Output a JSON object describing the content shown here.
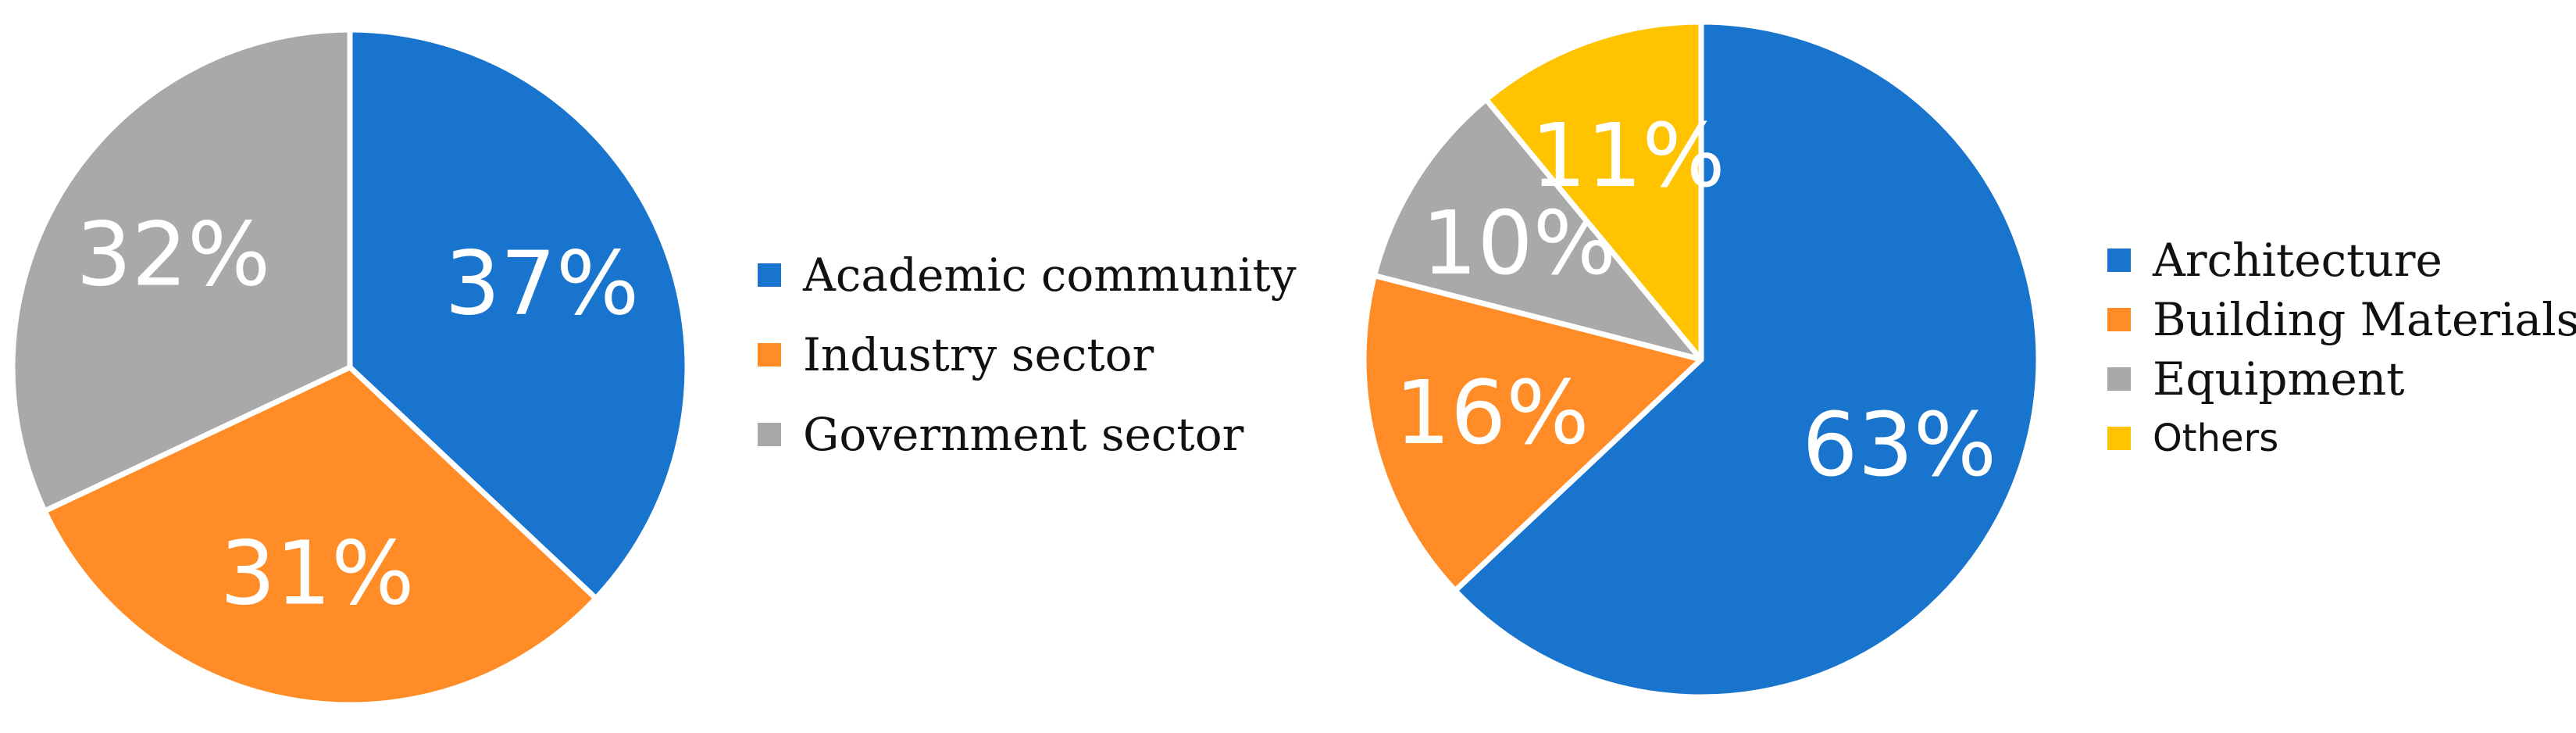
{
  "chart_data": [
    {
      "type": "pie",
      "title": "",
      "start_angle_deg": 0,
      "direction": "clockwise",
      "legend_position": "right",
      "slices": [
        {
          "label": "Academic community",
          "value": 37,
          "display": "37%",
          "color": "#1874CD"
        },
        {
          "label": "Industry sector",
          "value": 31,
          "display": "31%",
          "color": "#FF8C26"
        },
        {
          "label": "Government sector",
          "value": 32,
          "display": "32%",
          "color": "#A9A9A9"
        }
      ]
    },
    {
      "type": "pie",
      "title": "",
      "start_angle_deg": 0,
      "direction": "clockwise",
      "legend_position": "right",
      "slices": [
        {
          "label": "Architecture",
          "value": 63,
          "display": "63%",
          "color": "#1874CD"
        },
        {
          "label": "Building Materials",
          "value": 16,
          "display": "16%",
          "color": "#FF8C26"
        },
        {
          "label": "Equipment",
          "value": 10,
          "display": "10%",
          "color": "#A9A9A9"
        },
        {
          "label": "Others",
          "value": 11,
          "display": "11%",
          "color": "#FFC300"
        }
      ]
    }
  ]
}
